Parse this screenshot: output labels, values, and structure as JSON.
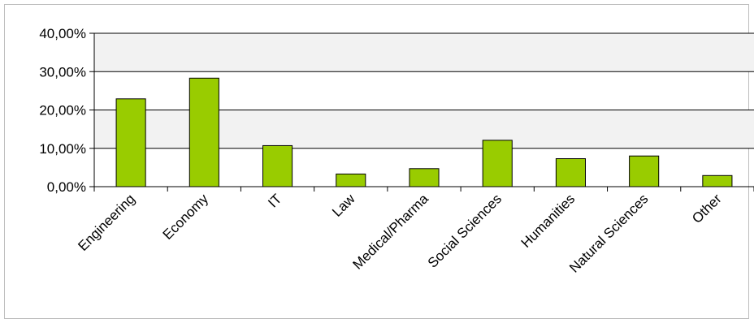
{
  "chart_data": {
    "type": "bar",
    "title": "",
    "xlabel": "",
    "ylabel": "",
    "categories": [
      "Engineering",
      "Economy",
      "IT",
      "Law",
      "Medical/Pharma",
      "Social Sciences",
      "Humanities",
      "Natural Sciences",
      "Other"
    ],
    "values": [
      22.9,
      28.3,
      10.7,
      3.3,
      4.7,
      12.1,
      7.3,
      8.0,
      2.9
    ],
    "value_unit": "%",
    "ylim": [
      0,
      40
    ],
    "yticks": [
      "0,00%",
      "10,00%",
      "20,00%",
      "30,00%",
      "40,00%"
    ],
    "grid": true,
    "legend": "none",
    "bar_color": "#99cc00",
    "bar_edge_color": "#000000",
    "band_color": "#f2f2f2"
  }
}
